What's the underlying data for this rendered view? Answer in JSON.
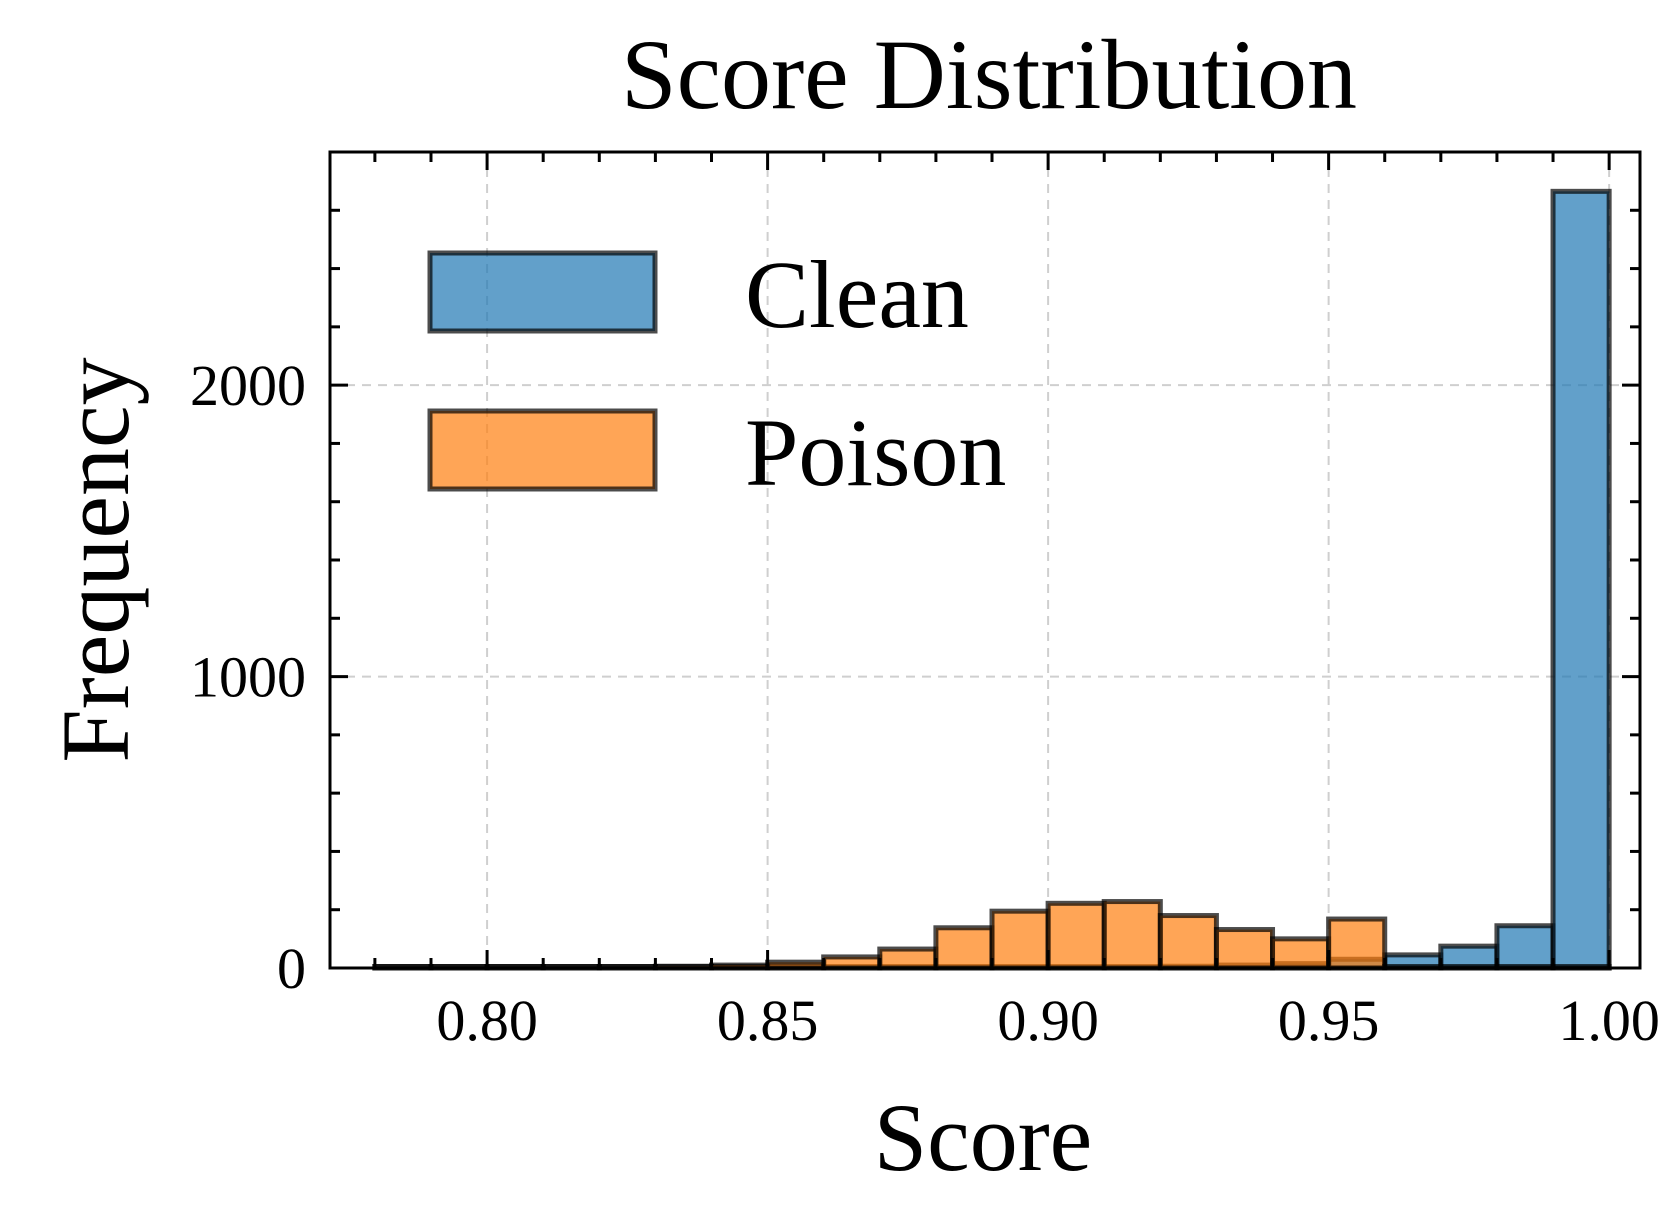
{
  "chart_data": {
    "type": "bar",
    "title": "Score Distribution",
    "xlabel": "Score",
    "ylabel": "Frequency",
    "xlim": [
      0.772,
      1.0055
    ],
    "ylim": [
      0,
      2800
    ],
    "xticks": [
      0.8,
      0.85,
      0.9,
      0.95,
      1.0
    ],
    "xtick_labels": [
      "0.80",
      "0.85",
      "0.90",
      "0.95",
      "1.00"
    ],
    "yticks": [
      0,
      1000,
      2000
    ],
    "ytick_labels": [
      "0",
      "1000",
      "2000"
    ],
    "grid": true,
    "legend_position": "top-left",
    "series": [
      {
        "name": "Clean",
        "color": "#1f77b4",
        "bins": [
          [
            0.78,
            0.79,
            0
          ],
          [
            0.79,
            0.8,
            0
          ],
          [
            0.8,
            0.81,
            0
          ],
          [
            0.81,
            0.82,
            0
          ],
          [
            0.82,
            0.83,
            0
          ],
          [
            0.83,
            0.84,
            0
          ],
          [
            0.84,
            0.85,
            0
          ],
          [
            0.85,
            0.86,
            0
          ],
          [
            0.86,
            0.87,
            0
          ],
          [
            0.87,
            0.88,
            0
          ],
          [
            0.88,
            0.89,
            0
          ],
          [
            0.89,
            0.9,
            0
          ],
          [
            0.9,
            0.91,
            2
          ],
          [
            0.91,
            0.92,
            4
          ],
          [
            0.92,
            0.93,
            6
          ],
          [
            0.93,
            0.94,
            10
          ],
          [
            0.94,
            0.95,
            15
          ],
          [
            0.95,
            0.96,
            30
          ],
          [
            0.96,
            0.97,
            45
          ],
          [
            0.97,
            0.98,
            75
          ],
          [
            0.98,
            0.99,
            145
          ],
          [
            0.99,
            1.0,
            2665
          ]
        ]
      },
      {
        "name": "Poison",
        "color": "#ff7f0e",
        "bins": [
          [
            0.78,
            0.79,
            4
          ],
          [
            0.79,
            0.8,
            2
          ],
          [
            0.8,
            0.81,
            2
          ],
          [
            0.81,
            0.82,
            3
          ],
          [
            0.82,
            0.83,
            4
          ],
          [
            0.83,
            0.84,
            6
          ],
          [
            0.84,
            0.85,
            10
          ],
          [
            0.85,
            0.86,
            20
          ],
          [
            0.86,
            0.87,
            38
          ],
          [
            0.87,
            0.88,
            65
          ],
          [
            0.88,
            0.89,
            138
          ],
          [
            0.89,
            0.9,
            195
          ],
          [
            0.9,
            0.91,
            222
          ],
          [
            0.91,
            0.92,
            228
          ],
          [
            0.92,
            0.93,
            180
          ],
          [
            0.93,
            0.94,
            132
          ],
          [
            0.94,
            0.95,
            100
          ],
          [
            0.95,
            0.96,
            168
          ],
          [
            0.96,
            0.97,
            0
          ],
          [
            0.97,
            0.98,
            0
          ],
          [
            0.98,
            0.99,
            0
          ],
          [
            0.99,
            1.0,
            0
          ]
        ]
      }
    ]
  }
}
